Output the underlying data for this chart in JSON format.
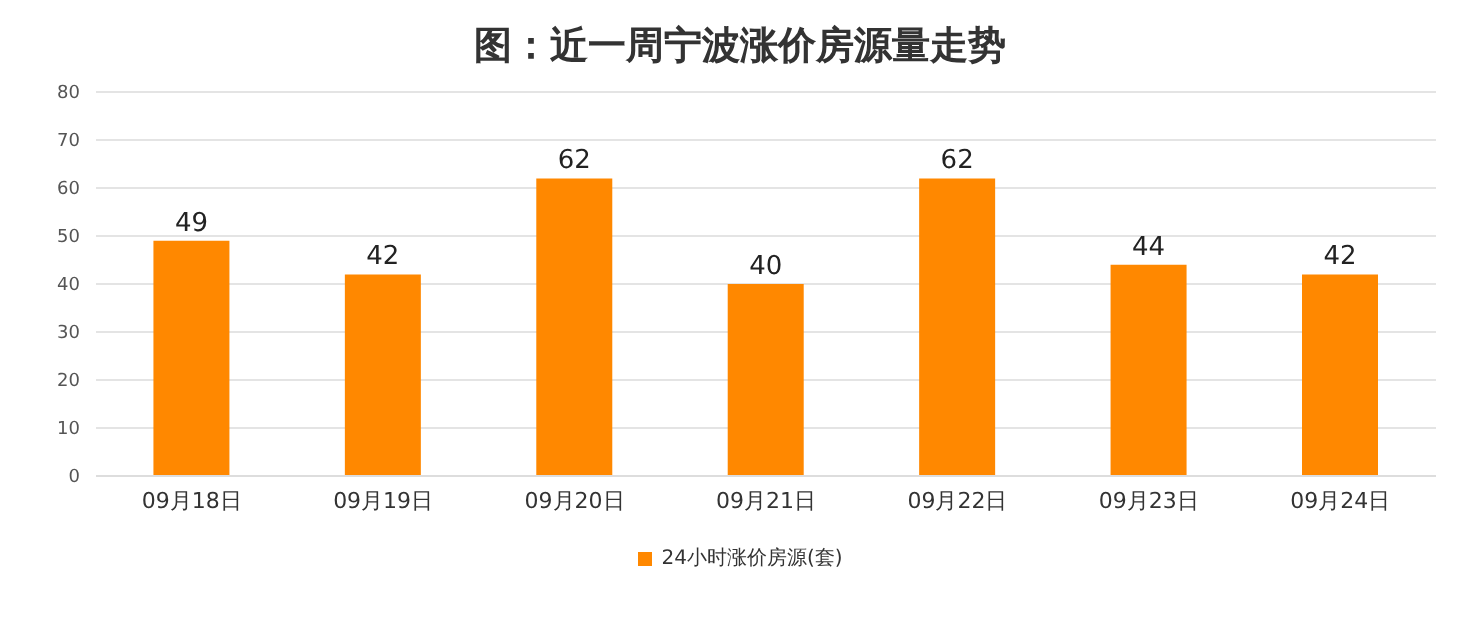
{
  "chart_data": {
    "type": "bar",
    "title": "图：近一周宁波涨价房源量走势",
    "categories": [
      "09月18日",
      "09月19日",
      "09月20日",
      "09月21日",
      "09月22日",
      "09月23日",
      "09月24日"
    ],
    "series": [
      {
        "name": "24小时涨价房源(套)",
        "color": "#ff8800",
        "values": [
          49,
          42,
          62,
          40,
          62,
          44,
          42
        ]
      }
    ],
    "ylim": [
      0,
      80
    ],
    "yticks": [
      0,
      10,
      20,
      30,
      40,
      50,
      60,
      70,
      80
    ],
    "grid": "y",
    "legend": "bottom",
    "data_labels": true
  }
}
